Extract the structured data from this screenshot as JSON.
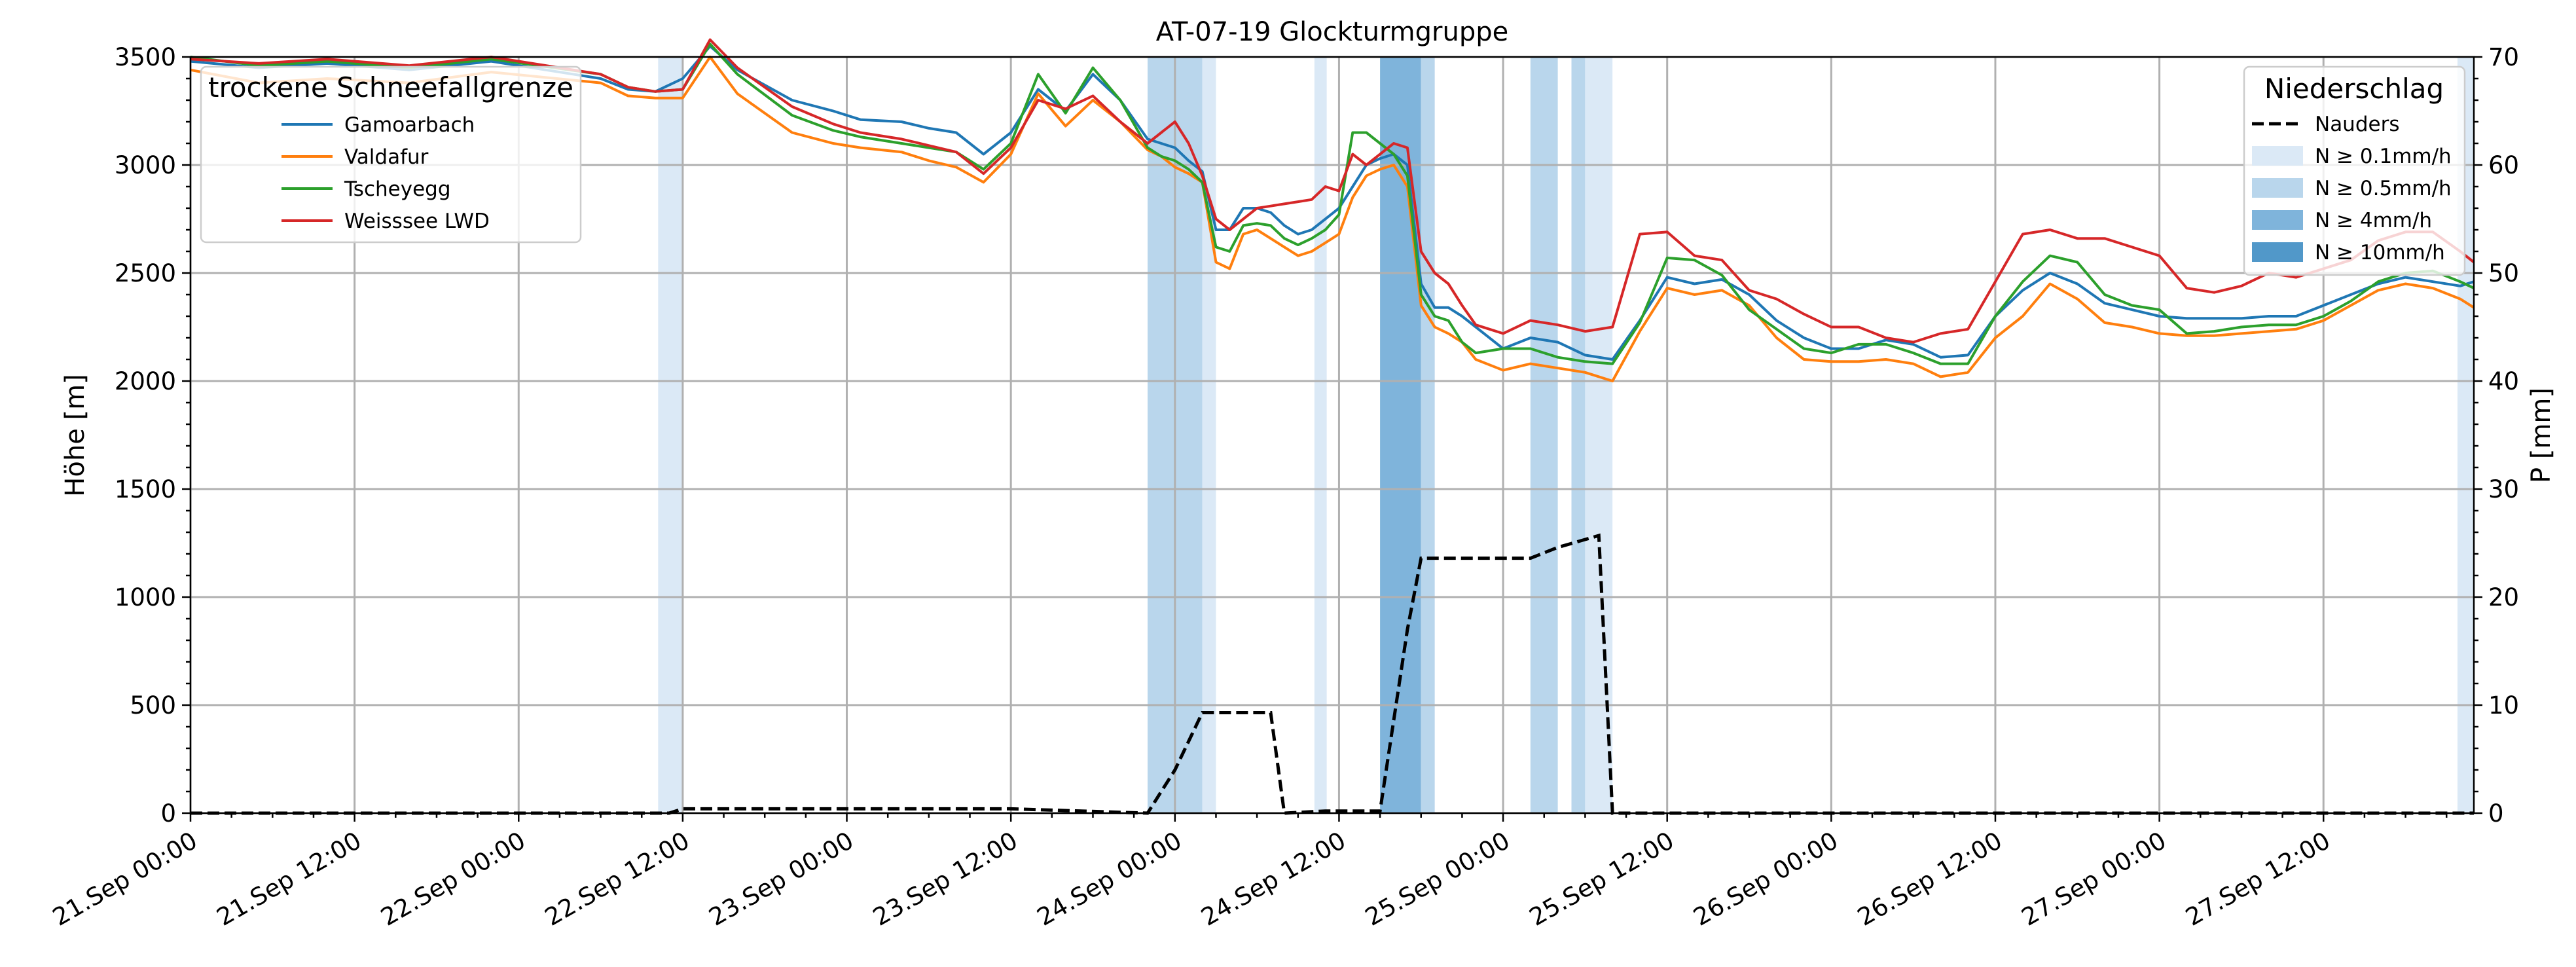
{
  "chart_data": {
    "type": "line",
    "title": "AT-07-19 Glockturmgruppe",
    "ylabel": "Höhe [m]",
    "y2label": "P [mm]",
    "ylim": [
      0,
      3500
    ],
    "y2lim": [
      0,
      70
    ],
    "yticks": [
      0,
      500,
      1000,
      1500,
      2000,
      2500,
      3000,
      3500
    ],
    "y2ticks": [
      0,
      10,
      20,
      30,
      40,
      50,
      60,
      70
    ],
    "x_range_hours": [
      0,
      167
    ],
    "xticks": [
      {
        "h": 0,
        "label": "21.Sep 00:00"
      },
      {
        "h": 12,
        "label": "21.Sep 12:00"
      },
      {
        "h": 24,
        "label": "22.Sep 00:00"
      },
      {
        "h": 36,
        "label": "22.Sep 12:00"
      },
      {
        "h": 48,
        "label": "23.Sep 00:00"
      },
      {
        "h": 60,
        "label": "23.Sep 12:00"
      },
      {
        "h": 72,
        "label": "24.Sep 00:00"
      },
      {
        "h": 84,
        "label": "24.Sep 12:00"
      },
      {
        "h": 96,
        "label": "25.Sep 00:00"
      },
      {
        "h": 108,
        "label": "25.Sep 12:00"
      },
      {
        "h": 120,
        "label": "26.Sep 00:00"
      },
      {
        "h": 132,
        "label": "26.Sep 12:00"
      },
      {
        "h": 144,
        "label": "27.Sep 00:00"
      },
      {
        "h": 156,
        "label": "27.Sep 12:00"
      }
    ],
    "grid": true,
    "legend_left": {
      "title": "trockene Schneefallgrenze",
      "placement": "top-left"
    },
    "legend_right": {
      "title": "Niederschlag",
      "placement": "top-right",
      "line_label": "Nauders",
      "band_labels": [
        "N ≥ 0.1mm/h",
        "N ≥ 0.5mm/h",
        "N ≥ 4mm/h",
        "N ≥ 10mm/h"
      ],
      "band_colors": [
        "#dbe9f6",
        "#b9d6ec",
        "#7fb4db",
        "#5198c9"
      ]
    },
    "precip_bands": [
      {
        "h0": 34.2,
        "h1": 36.0,
        "level": 0
      },
      {
        "h0": 70.0,
        "h1": 74.0,
        "level": 1
      },
      {
        "h0": 74.0,
        "h1": 75.0,
        "level": 0
      },
      {
        "h0": 82.2,
        "h1": 83.1,
        "level": 0
      },
      {
        "h0": 87.0,
        "h1": 90.0,
        "level": 2
      },
      {
        "h0": 90.0,
        "h1": 91.0,
        "level": 1
      },
      {
        "h0": 98.0,
        "h1": 100.0,
        "level": 1
      },
      {
        "h0": 101.0,
        "h1": 102.0,
        "level": 1
      },
      {
        "h0": 102.0,
        "h1": 104.0,
        "level": 0
      },
      {
        "h0": 165.8,
        "h1": 167.0,
        "level": 0
      }
    ],
    "precip_series": {
      "name": "Nauders",
      "color": "#000000",
      "h": [
        0,
        35,
        36,
        60,
        70,
        72,
        74,
        79,
        80,
        83,
        87,
        89,
        90,
        98,
        100,
        103,
        104,
        167
      ],
      "values": [
        0,
        0,
        0.4,
        0.4,
        0,
        4,
        9.3,
        9.3,
        0,
        0.2,
        0.2,
        17,
        23.6,
        23.6,
        24.6,
        25.7,
        0,
        0
      ]
    },
    "series": [
      {
        "name": "Gamoarbach",
        "color": "#1f77b4",
        "h": [
          0,
          5,
          10,
          16,
          22,
          30,
          32,
          34,
          36,
          38,
          40,
          44,
          47,
          49,
          52,
          54,
          56,
          58,
          60,
          62,
          64,
          66,
          68,
          70,
          71,
          72,
          73,
          74,
          75,
          76,
          77,
          78,
          79,
          80,
          81,
          82,
          83,
          84,
          85,
          86,
          87,
          88,
          89,
          90,
          91,
          92,
          93,
          94,
          96,
          98,
          100,
          102,
          104,
          106,
          108,
          110,
          112,
          114,
          116,
          118,
          120,
          122,
          124,
          126,
          128,
          130,
          132,
          134,
          136,
          138,
          140,
          142,
          144,
          146,
          148,
          150,
          152,
          154,
          156,
          158,
          160,
          162,
          164,
          166,
          167
        ],
        "values": [
          3480,
          3450,
          3470,
          3440,
          3480,
          3400,
          3350,
          3340,
          3400,
          3550,
          3440,
          3300,
          3250,
          3210,
          3200,
          3170,
          3150,
          3050,
          3150,
          3350,
          3250,
          3420,
          3300,
          3120,
          3100,
          3080,
          3020,
          2970,
          2700,
          2700,
          2800,
          2800,
          2780,
          2720,
          2680,
          2700,
          2750,
          2800,
          2900,
          3000,
          3030,
          3050,
          3000,
          2450,
          2340,
          2340,
          2300,
          2250,
          2150,
          2200,
          2180,
          2120,
          2100,
          2280,
          2480,
          2450,
          2470,
          2400,
          2280,
          2200,
          2150,
          2150,
          2190,
          2170,
          2110,
          2120,
          2300,
          2420,
          2500,
          2450,
          2360,
          2330,
          2300,
          2290,
          2290,
          2290,
          2300,
          2300,
          2350,
          2400,
          2450,
          2480,
          2460,
          2440,
          2460
        ]
      },
      {
        "name": "Valdafur",
        "color": "#ff7f0e",
        "h": [
          0,
          5,
          10,
          16,
          22,
          30,
          32,
          34,
          36,
          38,
          40,
          44,
          47,
          49,
          52,
          54,
          56,
          58,
          60,
          62,
          64,
          66,
          68,
          70,
          71,
          72,
          73,
          74,
          75,
          76,
          77,
          78,
          79,
          80,
          81,
          82,
          83,
          84,
          85,
          86,
          87,
          88,
          89,
          90,
          91,
          92,
          93,
          94,
          96,
          98,
          100,
          102,
          104,
          106,
          108,
          110,
          112,
          114,
          116,
          118,
          120,
          122,
          124,
          126,
          128,
          130,
          132,
          134,
          136,
          138,
          140,
          142,
          144,
          146,
          148,
          150,
          152,
          154,
          156,
          158,
          160,
          162,
          164,
          166,
          167
        ],
        "values": [
          3440,
          3380,
          3400,
          3380,
          3430,
          3380,
          3320,
          3310,
          3310,
          3500,
          3330,
          3150,
          3100,
          3080,
          3060,
          3020,
          2990,
          2920,
          3050,
          3330,
          3180,
          3300,
          3200,
          3070,
          3040,
          2990,
          2960,
          2920,
          2550,
          2520,
          2680,
          2700,
          2660,
          2620,
          2580,
          2600,
          2640,
          2680,
          2850,
          2950,
          2980,
          3000,
          2900,
          2350,
          2250,
          2220,
          2180,
          2100,
          2050,
          2080,
          2060,
          2040,
          2000,
          2230,
          2430,
          2400,
          2420,
          2350,
          2200,
          2100,
          2090,
          2090,
          2100,
          2080,
          2020,
          2040,
          2200,
          2300,
          2450,
          2380,
          2270,
          2250,
          2220,
          2210,
          2210,
          2220,
          2230,
          2240,
          2280,
          2350,
          2420,
          2450,
          2430,
          2380,
          2340
        ]
      },
      {
        "name": "Tscheyegg",
        "color": "#2ca02c",
        "h": [
          0,
          5,
          10,
          16,
          22,
          30,
          32,
          34,
          36,
          38,
          40,
          44,
          47,
          49,
          52,
          54,
          56,
          58,
          60,
          62,
          64,
          66,
          68,
          70,
          71,
          72,
          73,
          74,
          75,
          76,
          77,
          78,
          79,
          80,
          81,
          82,
          83,
          84,
          85,
          86,
          87,
          88,
          89,
          90,
          91,
          92,
          93,
          94,
          96,
          98,
          100,
          102,
          104,
          106,
          108,
          110,
          112,
          114,
          116,
          118,
          120,
          122,
          124,
          126,
          128,
          130,
          132,
          134,
          136,
          138,
          140,
          142,
          144,
          146,
          148,
          150,
          152,
          154,
          156,
          158,
          160,
          162,
          164,
          166,
          167
        ],
        "values": [
          3500,
          3460,
          3480,
          3450,
          3490,
          3420,
          3360,
          3340,
          3350,
          3560,
          3420,
          3230,
          3160,
          3130,
          3100,
          3080,
          3060,
          2980,
          3100,
          3420,
          3240,
          3450,
          3300,
          3080,
          3040,
          3020,
          2980,
          2920,
          2620,
          2600,
          2720,
          2730,
          2720,
          2660,
          2630,
          2660,
          2700,
          2770,
          3150,
          3150,
          3100,
          3050,
          2950,
          2400,
          2300,
          2280,
          2180,
          2130,
          2150,
          2150,
          2110,
          2090,
          2080,
          2270,
          2570,
          2560,
          2490,
          2330,
          2240,
          2150,
          2130,
          2170,
          2170,
          2130,
          2080,
          2080,
          2300,
          2460,
          2580,
          2550,
          2400,
          2350,
          2330,
          2220,
          2230,
          2250,
          2260,
          2260,
          2300,
          2370,
          2460,
          2500,
          2510,
          2460,
          2430
        ]
      },
      {
        "name": "Weisssee LWD",
        "color": "#d62728",
        "h": [
          0,
          5,
          10,
          16,
          22,
          30,
          32,
          34,
          36,
          38,
          40,
          44,
          47,
          49,
          52,
          54,
          56,
          58,
          60,
          62,
          64,
          66,
          68,
          70,
          71,
          72,
          73,
          74,
          75,
          76,
          77,
          78,
          79,
          80,
          81,
          82,
          83,
          84,
          85,
          86,
          87,
          88,
          89,
          90,
          91,
          92,
          93,
          94,
          96,
          98,
          100,
          102,
          104,
          106,
          108,
          110,
          112,
          114,
          116,
          118,
          120,
          122,
          124,
          126,
          128,
          130,
          132,
          134,
          136,
          138,
          140,
          142,
          144,
          146,
          148,
          150,
          152,
          154,
          156,
          158,
          160,
          162,
          164,
          166,
          167
        ],
        "values": [
          3490,
          3470,
          3490,
          3460,
          3500,
          3420,
          3360,
          3340,
          3350,
          3580,
          3450,
          3270,
          3190,
          3150,
          3120,
          3090,
          3060,
          2960,
          3080,
          3300,
          3260,
          3320,
          3200,
          3100,
          3150,
          3200,
          3100,
          2950,
          2750,
          2700,
          2750,
          2800,
          2810,
          2820,
          2830,
          2840,
          2900,
          2880,
          3050,
          3000,
          3050,
          3100,
          3080,
          2600,
          2500,
          2450,
          2350,
          2260,
          2220,
          2280,
          2260,
          2230,
          2250,
          2680,
          2690,
          2580,
          2560,
          2420,
          2380,
          2310,
          2250,
          2250,
          2200,
          2180,
          2220,
          2240,
          2460,
          2680,
          2700,
          2660,
          2660,
          2620,
          2580,
          2430,
          2410,
          2440,
          2500,
          2480,
          2520,
          2560,
          2650,
          2690,
          2690,
          2600,
          2550
        ]
      }
    ]
  }
}
